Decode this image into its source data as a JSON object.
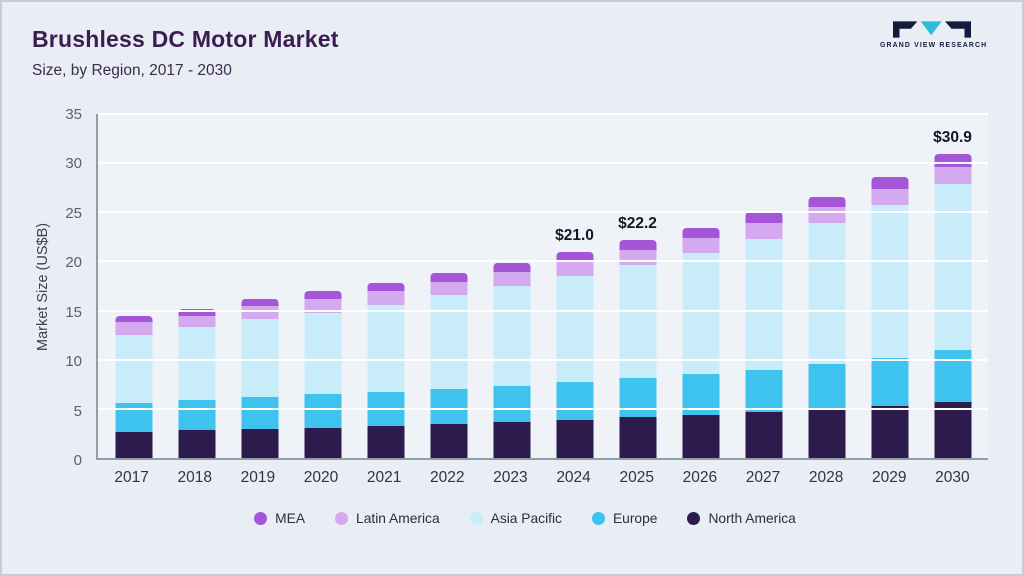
{
  "header": {
    "title": "Brushless DC Motor Market",
    "subtitle": "Size, by Region, 2017 - 2030",
    "logo_text": "GRAND VIEW RESEARCH"
  },
  "colors": {
    "background": "#e9edf4",
    "title": "#3c1d52",
    "logo_dark": "#141c3e",
    "logo_teal": "#2ebcd8"
  },
  "chart_data": {
    "type": "bar",
    "stacked": true,
    "title": "Brushless DC Motor Market Size, by Region, 2017 - 2030",
    "ylabel": "Market Size (US$B)",
    "ylim": [
      0,
      35
    ],
    "yticks": [
      0,
      5,
      10,
      15,
      20,
      25,
      30,
      35
    ],
    "grid": true,
    "legend_position": "bottom",
    "categories": [
      "2017",
      "2018",
      "2019",
      "2020",
      "2021",
      "2022",
      "2023",
      "2024",
      "2025",
      "2026",
      "2027",
      "2028",
      "2029",
      "2030"
    ],
    "series": [
      {
        "name": "North America",
        "color": "#2d1b4e",
        "values": [
          2.6,
          2.8,
          3.0,
          3.1,
          3.3,
          3.5,
          3.7,
          3.9,
          4.2,
          4.4,
          4.7,
          5.0,
          5.3,
          5.7
        ]
      },
      {
        "name": "Europe",
        "color": "#3ec3ee",
        "values": [
          3.0,
          3.1,
          3.2,
          3.4,
          3.4,
          3.5,
          3.6,
          3.8,
          3.9,
          4.1,
          4.3,
          4.6,
          4.9,
          5.3
        ]
      },
      {
        "name": "Asia Pacific",
        "color": "#c8ecfa",
        "values": [
          6.9,
          7.4,
          7.9,
          8.3,
          8.9,
          9.6,
          10.2,
          10.8,
          11.5,
          12.4,
          13.3,
          14.3,
          15.5,
          16.9
        ]
      },
      {
        "name": "Latin America",
        "color": "#d4a9ef",
        "values": [
          1.3,
          1.2,
          1.4,
          1.4,
          1.4,
          1.3,
          1.4,
          1.5,
          1.6,
          1.5,
          1.6,
          1.6,
          1.7,
          1.7
        ]
      },
      {
        "name": "MEA",
        "color": "#a455d8",
        "values": [
          0.7,
          0.7,
          0.7,
          0.8,
          0.8,
          0.9,
          0.9,
          1.0,
          1.0,
          1.0,
          1.1,
          1.1,
          1.2,
          1.3
        ]
      }
    ],
    "totals": [
      14.5,
      15.2,
      16.2,
      17.0,
      17.8,
      18.8,
      19.8,
      21.0,
      22.2,
      23.4,
      25.0,
      26.6,
      28.6,
      30.9
    ],
    "legend": [
      "MEA",
      "Latin America",
      "Asia Pacific",
      "Europe",
      "North America"
    ],
    "annotations": [
      {
        "category": "2024",
        "label": "$21.0"
      },
      {
        "category": "2025",
        "label": "$22.2"
      },
      {
        "category": "2030",
        "label": "$30.9"
      }
    ]
  }
}
